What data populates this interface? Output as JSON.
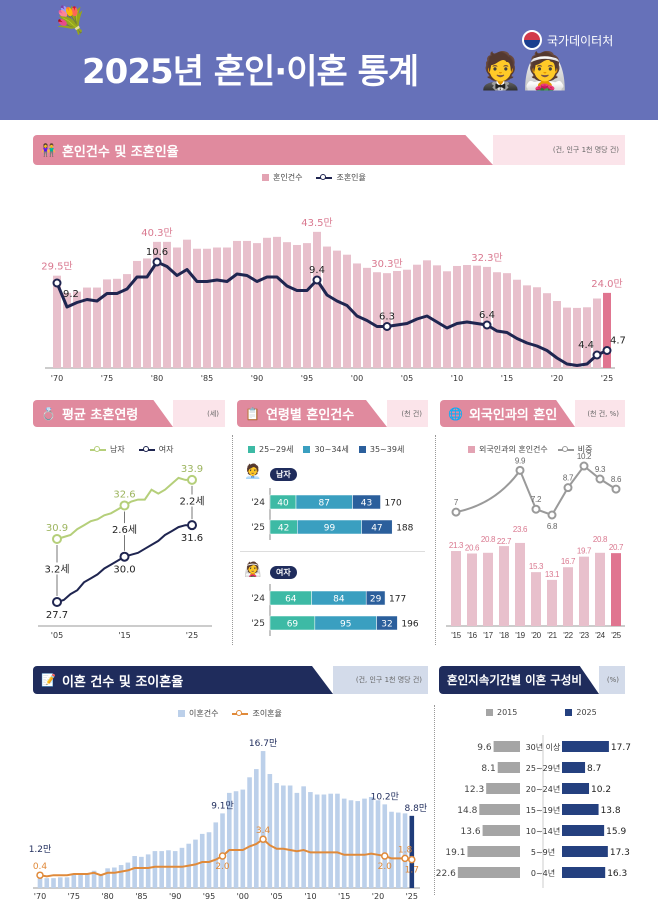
{
  "header": {
    "title": "2025년 혼인·이혼 통계",
    "agency": "국가데이터처",
    "background_color": "#6671b9"
  },
  "marriage": {
    "title": "혼인건수 및 조혼인율",
    "unit": "(건, 인구 1천 명당 건)",
    "legend": {
      "bars": "혼인건수",
      "line": "조혼인율"
    },
    "count_labels": [
      {
        "year": 1970,
        "text": "29.5만"
      },
      {
        "year": 1980,
        "text": "40.3만"
      },
      {
        "year": 1996,
        "text": "43.5만"
      },
      {
        "year": 2003,
        "text": "30.3만"
      },
      {
        "year": 2013,
        "text": "32.3만"
      },
      {
        "year": 2025,
        "text": "24.0만"
      }
    ],
    "rate_labels": [
      {
        "year": 1970,
        "text": "9.2"
      },
      {
        "year": 1980,
        "text": "10.6"
      },
      {
        "year": 1996,
        "text": "9.4"
      },
      {
        "year": 2003,
        "text": "6.3"
      },
      {
        "year": 2013,
        "text": "6.4"
      },
      {
        "year": 2024,
        "text": "4.4"
      },
      {
        "year": 2025,
        "text": "4.7"
      }
    ],
    "x_ticks": [
      "'70",
      "'75",
      "'80",
      "'85",
      "'90",
      "'95",
      "'00",
      "'05",
      "'10",
      "'15",
      "'20",
      "'25"
    ]
  },
  "age": {
    "title": "평균 초혼연령",
    "unit": "(세)",
    "legend": {
      "men": "남자",
      "women": "여자"
    },
    "x_ticks": [
      "'05",
      "'15",
      "'25"
    ],
    "gaps": [
      "3.2세",
      "2.6세",
      "2.2세"
    ]
  },
  "agegroup": {
    "title": "연령별 혼인건수",
    "unit": "(천 건)",
    "legend": [
      "25~29세",
      "30~34세",
      "35~39세"
    ],
    "men_label": "남자",
    "women_label": "여자"
  },
  "foreign": {
    "title": "외국인과의 혼인",
    "unit": "(천 건, %)",
    "legend": {
      "bars": "외국인과의 혼인건수",
      "line": "비중"
    }
  },
  "divorce": {
    "title": "이혼 건수 및 조이혼율",
    "unit": "(건, 인구 1천 명당 건)",
    "legend": {
      "bars": "이혼건수",
      "line": "조이혼율"
    },
    "count_labels": [
      {
        "year": 1970,
        "text": "1.2만"
      },
      {
        "year": 1997,
        "text": "9.1만"
      },
      {
        "year": 2003,
        "text": "16.7만"
      },
      {
        "year": 2021,
        "text": "10.2만"
      },
      {
        "year": 2025,
        "text": "8.8만"
      }
    ],
    "rate_labels": [
      {
        "year": 1970,
        "text": "0.4"
      },
      {
        "year": 1997,
        "text": "2.0"
      },
      {
        "year": 2003,
        "text": "3.4"
      },
      {
        "year": 2021,
        "text": "2.0"
      },
      {
        "year": 2024,
        "text": "1.8"
      },
      {
        "year": 2025,
        "text": "1.7"
      }
    ],
    "x_ticks": [
      "'70",
      "'75",
      "'80",
      "'85",
      "'90",
      "'95",
      "'00",
      "'05",
      "'10",
      "'15",
      "'20",
      "'25"
    ]
  },
  "duration": {
    "title": "혼인지속기간별 이혼 구성비",
    "unit": "(%)",
    "legend": [
      "2015",
      "2025"
    ]
  },
  "colors": {
    "pink_header": "#e08a9e",
    "marriage_bar": "#e8c0cc",
    "marriage_bar_2025": "#e07590",
    "line_navy": "#1f2550",
    "men_line": "#b5cf7a",
    "age_25_29": "#3dbaa5",
    "age_30_34": "#3a9fc0",
    "age_35_39": "#2b5f9c",
    "divorce_bar": "#bcd0ea",
    "divorce_bar_2025": "#1f3c7a",
    "divorce_line": "#e08a3a",
    "gray_2015": "#a5a5a5",
    "navy_2025": "#24407f"
  },
  "chart_data": [
    {
      "type": "bar+line",
      "title": "혼인건수 및 조혼인율",
      "x": [
        1970,
        1971,
        1972,
        1973,
        1974,
        1975,
        1976,
        1977,
        1978,
        1979,
        1980,
        1981,
        1982,
        1983,
        1984,
        1985,
        1986,
        1987,
        1988,
        1989,
        1990,
        1991,
        1992,
        1993,
        1994,
        1995,
        1996,
        1997,
        1998,
        1999,
        2000,
        2001,
        2002,
        2003,
        2004,
        2005,
        2006,
        2007,
        2008,
        2009,
        2010,
        2011,
        2012,
        2013,
        2014,
        2015,
        2016,
        2017,
        2018,
        2019,
        2020,
        2021,
        2022,
        2023,
        2024,
        2025
      ],
      "series": [
        {
          "name": "혼인건수",
          "unit": "만 건",
          "values": [
            29.5,
            24.0,
            24.4,
            25.7,
            25.7,
            28.3,
            28.5,
            30.0,
            34.2,
            35.0,
            40.3,
            40.3,
            38.5,
            41.0,
            38.1,
            38.1,
            38.5,
            38.5,
            40.6,
            40.6,
            39.9,
            41.6,
            41.9,
            40.2,
            39.3,
            39.9,
            43.5,
            38.8,
            37.5,
            36.2,
            33.4,
            32.0,
            30.6,
            30.3,
            31.0,
            31.4,
            33.0,
            34.4,
            32.8,
            30.9,
            32.6,
            32.9,
            32.7,
            32.3,
            30.6,
            30.3,
            28.2,
            26.4,
            25.8,
            23.9,
            21.4,
            19.3,
            19.2,
            19.4,
            22.2,
            24.0
          ]
        },
        {
          "name": "조혼인율",
          "values": [
            9.2,
            7.6,
            7.9,
            8.1,
            8.0,
            8.5,
            8.5,
            8.8,
            9.6,
            9.6,
            10.6,
            10.3,
            9.7,
            10.1,
            9.3,
            9.3,
            9.4,
            9.3,
            9.8,
            9.7,
            9.3,
            9.6,
            9.6,
            9.0,
            8.7,
            8.7,
            9.4,
            8.4,
            8.0,
            7.7,
            7.0,
            6.7,
            6.3,
            6.3,
            6.4,
            6.5,
            6.8,
            7.0,
            6.6,
            6.2,
            6.5,
            6.6,
            6.5,
            6.4,
            6.0,
            5.9,
            5.5,
            5.2,
            5.0,
            4.7,
            4.2,
            3.8,
            3.7,
            3.8,
            4.4,
            4.7
          ]
        }
      ]
    },
    {
      "type": "line",
      "title": "평균 초혼연령",
      "x": [
        2005,
        2006,
        2007,
        2008,
        2009,
        2010,
        2011,
        2012,
        2013,
        2014,
        2015,
        2016,
        2017,
        2018,
        2019,
        2020,
        2021,
        2022,
        2023,
        2024,
        2025
      ],
      "series": [
        {
          "name": "남자",
          "values": [
            30.9,
            31.0,
            31.1,
            31.4,
            31.6,
            31.8,
            31.9,
            32.1,
            32.2,
            32.4,
            32.6,
            32.8,
            32.9,
            32.9,
            33.4,
            33.2,
            33.4,
            33.7,
            34.0,
            33.9,
            33.9
          ]
        },
        {
          "name": "여자",
          "values": [
            27.7,
            27.8,
            28.1,
            28.3,
            28.7,
            28.9,
            29.1,
            29.4,
            29.6,
            29.8,
            30.0,
            30.1,
            30.2,
            30.4,
            30.6,
            30.8,
            31.1,
            31.3,
            31.5,
            31.6,
            31.6
          ]
        }
      ],
      "labeled": {
        "2005": [
          30.9,
          27.7
        ],
        "2015": [
          32.6,
          30.0
        ],
        "2025": [
          33.9,
          31.6
        ]
      }
    },
    {
      "type": "stacked-bar",
      "title": "연령별 혼인건수",
      "groups": [
        {
          "name": "남자",
          "rows": [
            {
              "year": "'24",
              "values": [
                40,
                87,
                43
              ],
              "total": 170
            },
            {
              "year": "'25",
              "values": [
                42,
                99,
                47
              ],
              "total": 188
            }
          ]
        },
        {
          "name": "여자",
          "rows": [
            {
              "year": "'24",
              "values": [
                64,
                84,
                29
              ],
              "total": 177
            },
            {
              "year": "'25",
              "values": [
                69,
                95,
                32
              ],
              "total": 196
            }
          ]
        }
      ],
      "series_names": [
        "25~29세",
        "30~34세",
        "35~39세"
      ]
    },
    {
      "type": "bar+line",
      "title": "외국인과의 혼인",
      "categories": [
        "'15",
        "'16",
        "'17",
        "'18",
        "'19",
        "'20",
        "'21",
        "'22",
        "'23",
        "'24",
        "'25"
      ],
      "bars": {
        "name": "외국인과의 혼인건수",
        "values": [
          21.3,
          20.6,
          20.8,
          22.7,
          23.6,
          15.3,
          13.1,
          16.7,
          19.7,
          20.8,
          20.7
        ]
      },
      "line": {
        "name": "비중",
        "points": [
          {
            "x": "'15",
            "y": 7.0
          },
          {
            "x": "'19",
            "y": 9.9
          },
          {
            "x": "'20",
            "y": 7.2
          },
          {
            "x": "'21",
            "y": 6.8
          },
          {
            "x": "'22",
            "y": 8.7
          },
          {
            "x": "'23",
            "y": 10.2
          },
          {
            "x": "'24",
            "y": 9.3
          },
          {
            "x": "'25",
            "y": 8.6
          }
        ]
      }
    },
    {
      "type": "bar+line",
      "title": "이혼 건수 및 조이혼율",
      "x": [
        1970,
        1971,
        1972,
        1973,
        1974,
        1975,
        1976,
        1977,
        1978,
        1979,
        1980,
        1981,
        1982,
        1983,
        1984,
        1985,
        1986,
        1987,
        1988,
        1989,
        1990,
        1991,
        1992,
        1993,
        1994,
        1995,
        1996,
        1997,
        1998,
        1999,
        2000,
        2001,
        2002,
        2003,
        2004,
        2005,
        2006,
        2007,
        2008,
        2009,
        2010,
        2011,
        2012,
        2013,
        2014,
        2015,
        2016,
        2017,
        2018,
        2019,
        2020,
        2021,
        2022,
        2023,
        2024,
        2025
      ],
      "series": [
        {
          "name": "이혼건수",
          "unit": "만 건",
          "values": [
            1.2,
            1.2,
            1.2,
            1.3,
            1.3,
            1.7,
            1.8,
            1.8,
            2.1,
            1.7,
            2.4,
            2.5,
            2.8,
            3.1,
            3.9,
            3.8,
            4.1,
            4.5,
            4.5,
            4.6,
            4.5,
            4.9,
            5.4,
            5.9,
            6.6,
            6.8,
            8.0,
            9.1,
            11.6,
            11.8,
            12.0,
            13.5,
            14.5,
            16.7,
            13.9,
            12.8,
            12.5,
            12.5,
            11.6,
            12.4,
            11.7,
            11.4,
            11.4,
            11.5,
            11.5,
            10.9,
            10.7,
            10.6,
            10.9,
            11.1,
            10.7,
            10.2,
            9.3,
            9.2,
            9.1,
            8.8
          ]
        },
        {
          "name": "조이혼율",
          "values": [
            0.4,
            0.3,
            0.4,
            0.4,
            0.4,
            0.5,
            0.5,
            0.5,
            0.6,
            0.4,
            0.6,
            0.6,
            0.7,
            0.8,
            1.0,
            1.0,
            1.0,
            1.1,
            1.1,
            1.1,
            1.1,
            1.1,
            1.2,
            1.3,
            1.5,
            1.5,
            1.7,
            2.0,
            2.5,
            2.5,
            2.5,
            2.8,
            3.0,
            3.4,
            2.9,
            2.6,
            2.6,
            2.5,
            2.4,
            2.5,
            2.3,
            2.3,
            2.3,
            2.3,
            2.3,
            2.1,
            2.1,
            2.1,
            2.1,
            2.2,
            2.1,
            2.0,
            1.8,
            1.8,
            1.8,
            1.7
          ]
        }
      ]
    },
    {
      "type": "butterfly-bar",
      "title": "혼인지속기간별 이혼 구성비",
      "categories": [
        "30년 이상",
        "25~29년",
        "20~24년",
        "15~19년",
        "10~14년",
        "5~9년",
        "0~4년"
      ],
      "series": [
        {
          "name": "2015",
          "values": [
            9.6,
            8.1,
            12.3,
            14.8,
            13.6,
            19.1,
            22.6
          ]
        },
        {
          "name": "2025",
          "values": [
            17.7,
            8.7,
            10.2,
            13.8,
            15.9,
            17.3,
            16.3
          ]
        }
      ]
    }
  ]
}
